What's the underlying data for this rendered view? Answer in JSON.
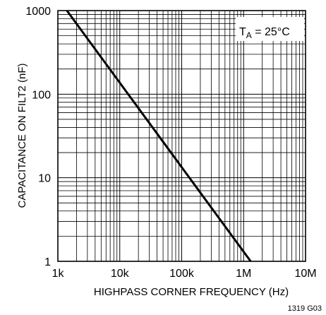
{
  "chart_data": {
    "type": "line",
    "title": "",
    "xlabel": "HIGHPASS CORNER FREQUENCY (Hz)",
    "ylabel": "CAPACITANCE ON FILT2 (nF)",
    "x_scale": "log",
    "y_scale": "log",
    "xlim": [
      1000,
      10000000
    ],
    "ylim": [
      1,
      1000
    ],
    "x_tick_labels": [
      "1k",
      "10k",
      "100k",
      "1M",
      "10M"
    ],
    "y_tick_labels": [
      "1",
      "10",
      "100",
      "1000"
    ],
    "grid": true,
    "series": [
      {
        "x": [
          1400,
          1300000
        ],
        "y": [
          1000,
          1
        ]
      }
    ],
    "annotation": {
      "main": "T",
      "sub": "A",
      "rest": " = 25°C"
    },
    "figure_code": "1319 G03"
  }
}
